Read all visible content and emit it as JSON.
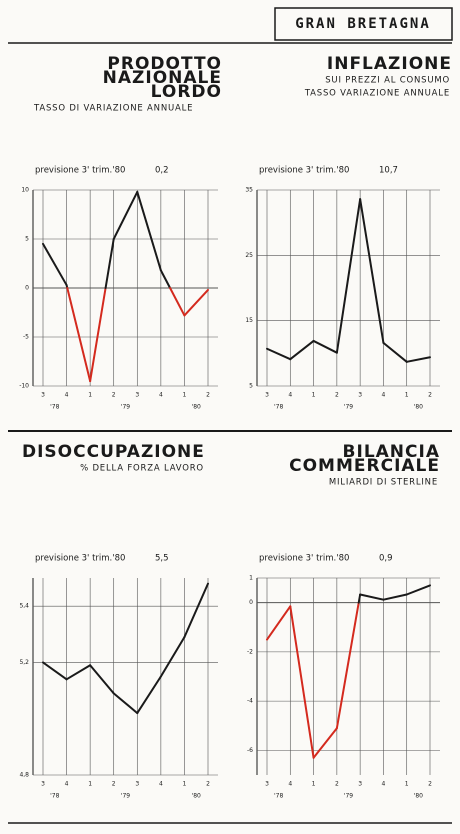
{
  "header": {
    "country": "GRAN BRETAGNA"
  },
  "chart_data": [
    {
      "type": "line",
      "title": [
        "PRODOTTO",
        "NAZIONALE",
        "LORDO"
      ],
      "title_align": "right",
      "subtitle": [
        "TASSO DI VARIAZIONE ANNUALE"
      ],
      "subtitle_align": "left",
      "forecast_label": "previsione 3' trim.'80",
      "forecast_value": "0,2",
      "categories": [
        "3",
        "4",
        "1",
        "2",
        "3",
        "4",
        "1",
        "2"
      ],
      "years": [
        "'78",
        "'79",
        "'80"
      ],
      "values": [
        4.5,
        0.3,
        -9.5,
        5.0,
        9.8,
        1.8,
        -2.8,
        -0.2
      ],
      "color": "#1a1a1a",
      "negative_color": "#d42a1e",
      "ylim": [
        -10,
        10
      ],
      "yticks": [
        10,
        5,
        0,
        -5,
        -10
      ],
      "grid": true
    },
    {
      "type": "line",
      "title": [
        "INFLAZIONE"
      ],
      "title_align": "right",
      "subtitle": [
        "SUI PREZZI AL CONSUMO",
        "TASSO VARIAZIONE ANNUALE"
      ],
      "subtitle_align": "right",
      "forecast_label": "previsione 3' trim.'80",
      "forecast_value": "10,7",
      "categories": [
        "3",
        "4",
        "1",
        "2",
        "3",
        "4",
        "1",
        "2"
      ],
      "years": [
        "'78",
        "'79",
        "'80"
      ],
      "values": [
        10.7,
        9.1,
        11.9,
        10.1,
        33.6,
        11.6,
        8.7,
        9.4
      ],
      "color": "#1a1a1a",
      "ylim": [
        5,
        35
      ],
      "yticks": [
        35,
        25,
        15,
        5
      ],
      "grid": true
    },
    {
      "type": "line",
      "title": [
        "DISOCCUPAZIONE"
      ],
      "title_align": "left",
      "subtitle": [
        "% DELLA FORZA LAVORO"
      ],
      "subtitle_align": "center",
      "forecast_label": "previsione 3' trim.'80",
      "forecast_value": "5,5",
      "categories": [
        "3",
        "4",
        "1",
        "2",
        "3",
        "4",
        "1",
        "2"
      ],
      "years": [
        "'78",
        "'79",
        "'80"
      ],
      "values": [
        5.2,
        5.14,
        5.19,
        5.09,
        5.02,
        5.15,
        5.29,
        5.48
      ],
      "color": "#1a1a1a",
      "ylim": [
        4.8,
        5.5
      ],
      "yticks": [
        {
          "value": 5.4,
          "label": "5,4"
        },
        {
          "value": 5.2,
          "label": "5,2"
        },
        {
          "value": 4.8,
          "label": "4,8"
        }
      ],
      "grid": true
    },
    {
      "type": "line",
      "title": [
        "BILANCIA",
        "COMMERCIALE"
      ],
      "title_align": "right",
      "subtitle": [
        "MILIARDI DI STERLINE"
      ],
      "subtitle_align": "right",
      "forecast_label": "previsione 3' trim.'80",
      "forecast_value": "0,9",
      "categories": [
        "3",
        "4",
        "1",
        "2",
        "3",
        "4",
        "1",
        "2"
      ],
      "years": [
        "'78",
        "'79",
        "'80"
      ],
      "values": [
        -1.5,
        -0.15,
        -6.3,
        -5.1,
        0.33,
        0.12,
        0.33,
        0.7
      ],
      "color": "#1a1a1a",
      "negative_color": "#d42a1e",
      "ylim": [
        -7,
        1
      ],
      "yticks": [
        1,
        0,
        -2,
        -4,
        -6
      ],
      "grid": true
    }
  ]
}
